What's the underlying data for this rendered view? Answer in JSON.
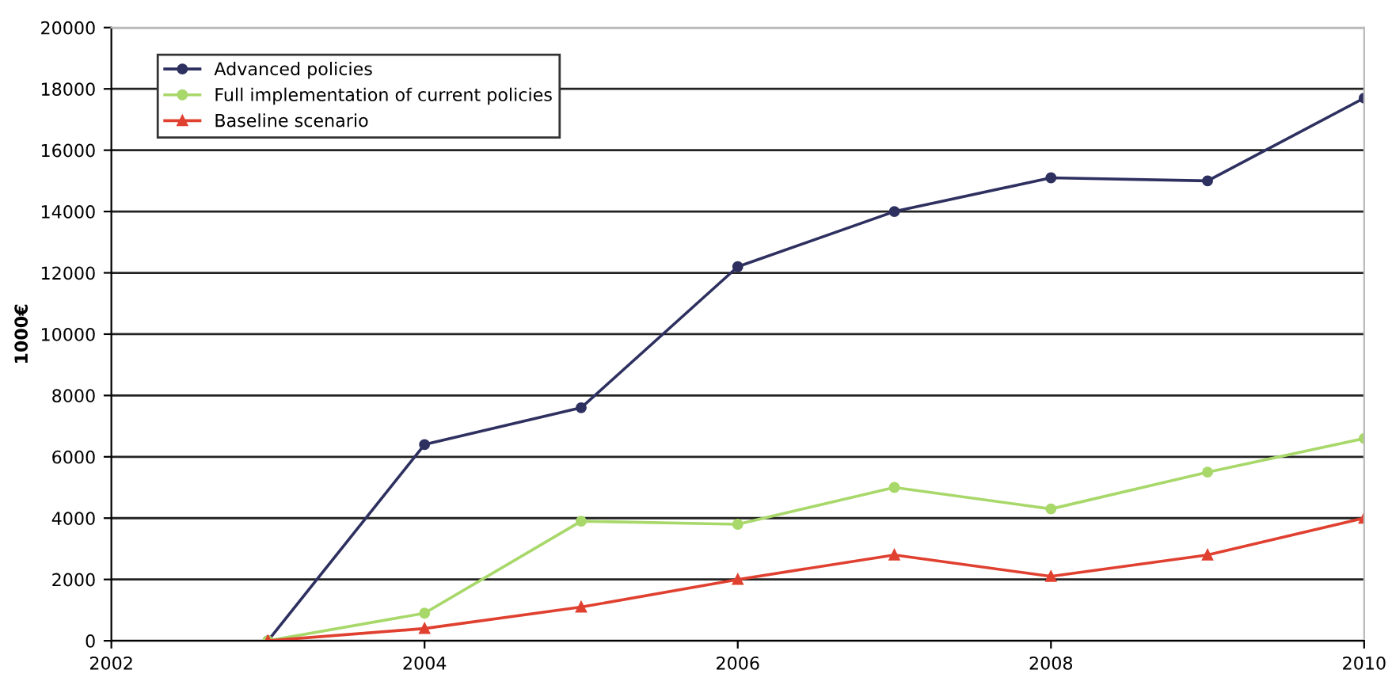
{
  "chart_data": {
    "type": "line",
    "ylabel": "1000€",
    "x": [
      2003,
      2004,
      2005,
      2006,
      2007,
      2008,
      2009,
      2010
    ],
    "series": [
      {
        "name": "Advanced policies",
        "color": "#2e3060",
        "marker": "circle",
        "values": [
          0,
          6400,
          7600,
          12200,
          14000,
          15100,
          15000,
          17700
        ]
      },
      {
        "name": "Full implementation of current policies",
        "color": "#a8d86a",
        "marker": "circle",
        "values": [
          0,
          900,
          3900,
          3800,
          5000,
          4300,
          5500,
          6600
        ]
      },
      {
        "name": "Baseline scenario",
        "color": "#e04030",
        "marker": "triangle",
        "values": [
          0,
          400,
          1100,
          2000,
          2800,
          2100,
          2800,
          4000
        ]
      }
    ],
    "xlim": [
      2002,
      2010
    ],
    "xticks": [
      2002,
      2004,
      2006,
      2008,
      2010
    ],
    "ylim": [
      0,
      20000
    ],
    "yticks": [
      0,
      2000,
      4000,
      6000,
      8000,
      10000,
      12000,
      14000,
      16000,
      18000,
      20000
    ],
    "grid": "y",
    "legend": "top left"
  }
}
